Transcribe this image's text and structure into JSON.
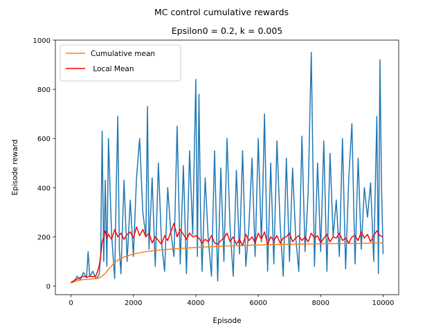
{
  "chart_data": {
    "type": "line",
    "suptitle": "MC control cumulative rewards",
    "title": "Epsilon0 = 0.2, k = 0.005",
    "xlabel": "Episode",
    "ylabel": "Episode reward",
    "xlim": [
      -500,
      10500
    ],
    "ylim": [
      -35,
      1000
    ],
    "xticks": [
      0,
      2000,
      4000,
      6000,
      8000,
      10000
    ],
    "yticks": [
      0,
      200,
      400,
      600,
      800,
      1000
    ],
    "legend_position": "upper-left",
    "grid": false,
    "series": [
      {
        "name": "",
        "color": "#1f77b4",
        "x": [
          0,
          100,
          200,
          300,
          400,
          500,
          550,
          600,
          700,
          800,
          900,
          950,
          1000,
          1050,
          1100,
          1150,
          1200,
          1300,
          1400,
          1450,
          1500,
          1550,
          1600,
          1700,
          1800,
          1900,
          2000,
          2100,
          2200,
          2300,
          2400,
          2450,
          2500,
          2600,
          2700,
          2800,
          2900,
          3000,
          3100,
          3200,
          3300,
          3400,
          3500,
          3600,
          3700,
          3800,
          3900,
          4000,
          4050,
          4100,
          4150,
          4200,
          4300,
          4400,
          4500,
          4600,
          4700,
          4800,
          4900,
          5000,
          5100,
          5200,
          5300,
          5400,
          5500,
          5600,
          5700,
          5800,
          5900,
          6000,
          6100,
          6150,
          6200,
          6300,
          6400,
          6500,
          6600,
          6700,
          6800,
          6900,
          7000,
          7100,
          7200,
          7300,
          7400,
          7500,
          7600,
          7700,
          7800,
          7900,
          8000,
          8100,
          8200,
          8300,
          8400,
          8500,
          8600,
          8700,
          8800,
          8900,
          9000,
          9100,
          9200,
          9300,
          9400,
          9500,
          9600,
          9700,
          9800,
          9850,
          9900,
          9950,
          10000
        ],
        "y": [
          15,
          20,
          40,
          25,
          55,
          35,
          140,
          40,
          60,
          30,
          45,
          120,
          630,
          100,
          430,
          80,
          600,
          210,
          30,
          390,
          690,
          150,
          50,
          430,
          100,
          350,
          120,
          440,
          600,
          300,
          200,
          730,
          150,
          440,
          80,
          500,
          180,
          60,
          400,
          220,
          120,
          650,
          90,
          490,
          50,
          550,
          210,
          840,
          120,
          780,
          300,
          60,
          440,
          190,
          40,
          550,
          20,
          480,
          100,
          600,
          230,
          40,
          470,
          130,
          550,
          80,
          240,
          520,
          120,
          600,
          180,
          410,
          700,
          60,
          500,
          90,
          590,
          250,
          40,
          520,
          100,
          480,
          200,
          60,
          610,
          140,
          380,
          950,
          80,
          500,
          140,
          590,
          60,
          540,
          200,
          350,
          120,
          600,
          70,
          440,
          660,
          90,
          520,
          150,
          400,
          280,
          420,
          100,
          690,
          50,
          920,
          400,
          130
        ]
      },
      {
        "name": "Cumulative mean",
        "color": "#ff7f0e",
        "x": [
          0,
          200,
          400,
          600,
          800,
          900,
          1000,
          1100,
          1200,
          1300,
          1400,
          1500,
          1700,
          2000,
          2400,
          3000,
          3500,
          4000,
          5000,
          6000,
          7000,
          8000,
          9000,
          10000
        ],
        "y": [
          12,
          22,
          26,
          28,
          30,
          33,
          40,
          52,
          68,
          82,
          95,
          105,
          118,
          130,
          140,
          148,
          153,
          157,
          163,
          167,
          170,
          172,
          173,
          175
        ]
      },
      {
        "name": " Local Mean",
        "color": "#ff0000",
        "x": [
          0,
          100,
          200,
          300,
          400,
          500,
          600,
          700,
          800,
          850,
          900,
          950,
          1000,
          1050,
          1100,
          1150,
          1200,
          1300,
          1400,
          1500,
          1600,
          1700,
          1800,
          1900,
          2000,
          2100,
          2200,
          2300,
          2400,
          2500,
          2600,
          2700,
          2800,
          2900,
          3000,
          3100,
          3200,
          3300,
          3400,
          3500,
          3600,
          3700,
          3800,
          3900,
          4000,
          4100,
          4200,
          4300,
          4400,
          4500,
          4600,
          4700,
          4800,
          4900,
          5000,
          5100,
          5200,
          5300,
          5400,
          5500,
          5600,
          5700,
          5800,
          5900,
          6000,
          6100,
          6200,
          6300,
          6400,
          6500,
          6600,
          6700,
          6800,
          6900,
          7000,
          7100,
          7200,
          7300,
          7400,
          7500,
          7600,
          7700,
          7800,
          7900,
          8000,
          8100,
          8200,
          8300,
          8400,
          8500,
          8600,
          8700,
          8800,
          8900,
          9000,
          9100,
          9200,
          9300,
          9400,
          9500,
          9600,
          9700,
          9800,
          9900,
          10000
        ],
        "y": [
          15,
          22,
          28,
          35,
          40,
          35,
          40,
          38,
          42,
          60,
          80,
          120,
          180,
          200,
          225,
          195,
          210,
          190,
          230,
          200,
          215,
          190,
          210,
          220,
          195,
          240,
          205,
          230,
          200,
          215,
          175,
          200,
          185,
          170,
          205,
          185,
          220,
          255,
          200,
          230,
          210,
          190,
          215,
          200,
          205,
          195,
          175,
          190,
          180,
          205,
          175,
          170,
          185,
          195,
          215,
          180,
          200,
          170,
          190,
          165,
          210,
          185,
          200,
          175,
          215,
          190,
          220,
          170,
          200,
          185,
          205,
          175,
          195,
          200,
          215,
          180,
          195,
          205,
          185,
          200,
          180,
          215,
          195,
          205,
          175,
          195,
          210,
          180,
          200,
          195,
          215,
          185,
          195,
          175,
          200,
          205,
          185,
          220,
          195,
          210,
          180,
          205,
          225,
          205,
          200
        ]
      }
    ]
  }
}
